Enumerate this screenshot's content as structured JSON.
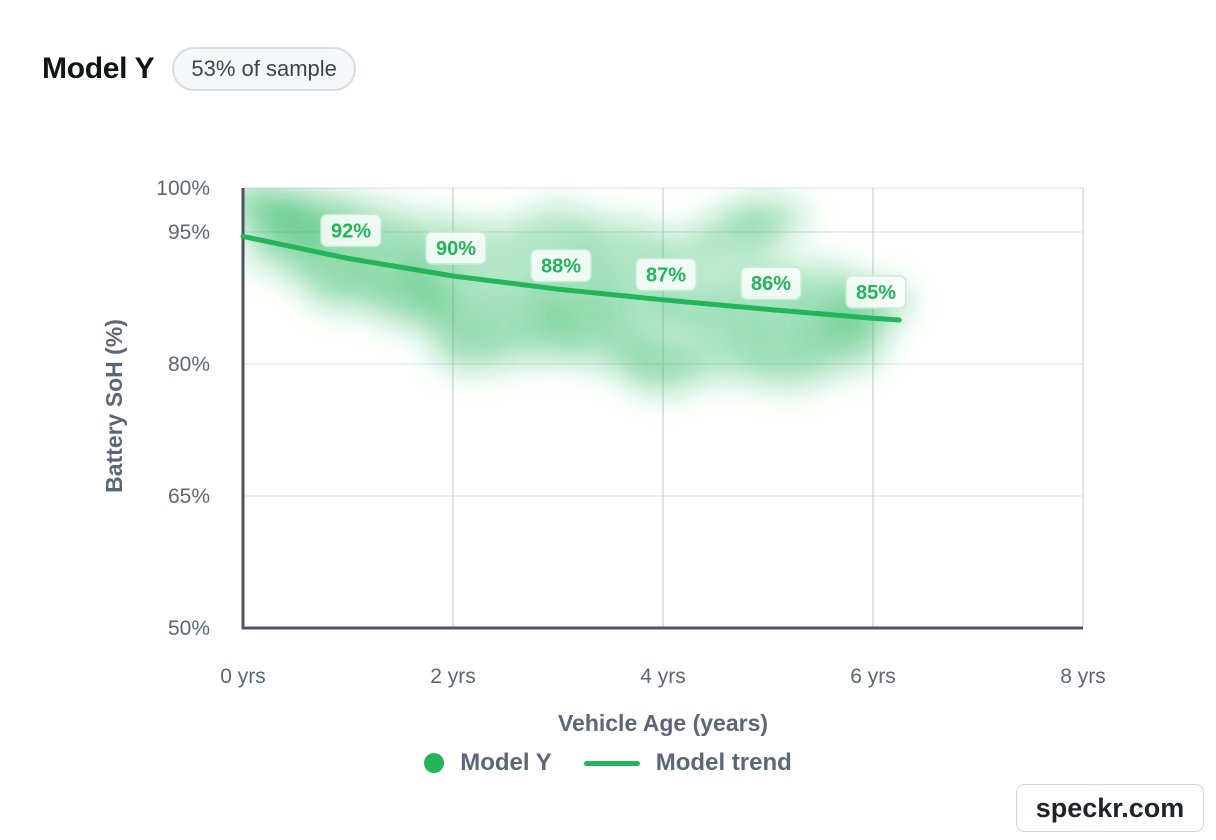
{
  "header": {
    "title": "Model Y",
    "badge": "53% of sample"
  },
  "chart_data": {
    "type": "scatter",
    "title": "Model Y",
    "xlabel": "Vehicle Age (years)",
    "ylabel": "Battery SoH (%)",
    "xlim": [
      0,
      8
    ],
    "ylim": [
      50,
      100
    ],
    "x_ticks": [
      0,
      2,
      4,
      6,
      8
    ],
    "x_tick_labels": [
      "0 yrs",
      "2 yrs",
      "4 yrs",
      "6 yrs",
      "8 yrs"
    ],
    "y_ticks": [
      50,
      65,
      80,
      95,
      100
    ],
    "y_tick_labels": [
      "50%",
      "65%",
      "80%",
      "95%",
      "100%"
    ],
    "grid": true,
    "legend_position": "bottom",
    "series": [
      {
        "name": "Model Y",
        "kind": "density",
        "color": "#22b55a",
        "points": [
          {
            "x": 0.1,
            "y": 98.5
          },
          {
            "x": 0.3,
            "y": 97.0
          },
          {
            "x": 0.5,
            "y": 95.5
          },
          {
            "x": 0.4,
            "y": 93.0
          },
          {
            "x": 0.7,
            "y": 97.5
          },
          {
            "x": 0.9,
            "y": 94.0
          },
          {
            "x": 0.8,
            "y": 90.5
          },
          {
            "x": 1.0,
            "y": 88.5
          },
          {
            "x": 1.2,
            "y": 96.0
          },
          {
            "x": 1.4,
            "y": 92.0
          },
          {
            "x": 1.5,
            "y": 89.0
          },
          {
            "x": 1.6,
            "y": 86.5
          },
          {
            "x": 1.8,
            "y": 94.5
          },
          {
            "x": 1.9,
            "y": 90.5
          },
          {
            "x": 2.0,
            "y": 87.0
          },
          {
            "x": 2.1,
            "y": 84.0
          },
          {
            "x": 2.2,
            "y": 81.5
          },
          {
            "x": 2.4,
            "y": 93.5
          },
          {
            "x": 2.6,
            "y": 89.0
          },
          {
            "x": 2.7,
            "y": 85.5
          },
          {
            "x": 2.8,
            "y": 82.5
          },
          {
            "x": 3.0,
            "y": 95.5
          },
          {
            "x": 3.1,
            "y": 91.5
          },
          {
            "x": 3.2,
            "y": 87.5
          },
          {
            "x": 3.2,
            "y": 85.0
          },
          {
            "x": 3.4,
            "y": 82.0
          },
          {
            "x": 3.6,
            "y": 94.0
          },
          {
            "x": 3.7,
            "y": 89.5
          },
          {
            "x": 3.8,
            "y": 85.5
          },
          {
            "x": 3.9,
            "y": 81.0
          },
          {
            "x": 4.0,
            "y": 79.0
          },
          {
            "x": 4.2,
            "y": 92.5
          },
          {
            "x": 4.3,
            "y": 87.5
          },
          {
            "x": 4.5,
            "y": 84.5
          },
          {
            "x": 4.6,
            "y": 80.5
          },
          {
            "x": 4.7,
            "y": 95.0
          },
          {
            "x": 4.9,
            "y": 90.0
          },
          {
            "x": 5.0,
            "y": 86.0
          },
          {
            "x": 5.1,
            "y": 82.5
          },
          {
            "x": 5.2,
            "y": 79.5
          },
          {
            "x": 5.5,
            "y": 89.0
          },
          {
            "x": 5.6,
            "y": 85.5
          },
          {
            "x": 5.7,
            "y": 81.5
          },
          {
            "x": 5.8,
            "y": 84.0
          },
          {
            "x": 6.0,
            "y": 87.0
          },
          {
            "x": 5.0,
            "y": 96.5
          }
        ]
      },
      {
        "name": "Model trend",
        "kind": "line",
        "color": "#22b55a",
        "x": [
          0,
          1,
          2,
          3,
          4,
          5,
          6,
          6.25
        ],
        "y": [
          94.5,
          92.0,
          90.0,
          88.5,
          87.3,
          86.2,
          85.2,
          85.0
        ]
      }
    ],
    "annotations": [
      {
        "x": 1,
        "y": 92,
        "text": "92%"
      },
      {
        "x": 2,
        "y": 90,
        "text": "90%"
      },
      {
        "x": 3,
        "y": 88,
        "text": "88%"
      },
      {
        "x": 4,
        "y": 87,
        "text": "87%"
      },
      {
        "x": 5,
        "y": 86,
        "text": "86%"
      },
      {
        "x": 6,
        "y": 85,
        "text": "85%"
      }
    ]
  },
  "legend": {
    "items": [
      {
        "label": "Model Y",
        "marker": "dot",
        "color": "#22b55a"
      },
      {
        "label": "Model trend",
        "marker": "line",
        "color": "#22b55a"
      }
    ]
  },
  "watermark": "speckr.com"
}
